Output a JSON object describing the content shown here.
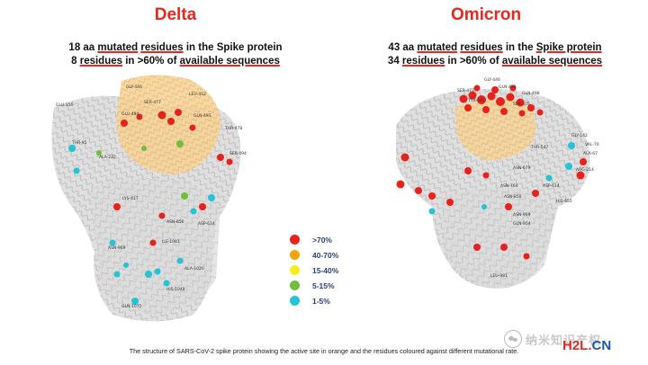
{
  "delta": {
    "title": "Delta",
    "subtitle_line1": [
      "18 aa ",
      "mutated",
      " ",
      "residues",
      " in the Spike protein"
    ],
    "subtitle_line2": [
      "8 ",
      "residues",
      " in >60% of ",
      "available sequences"
    ],
    "residue_labels": [
      "GLU-156",
      "LEU-452",
      "THR-478",
      "SER-477",
      "GLN-493",
      "GLY-446",
      "GLU-484",
      "SER-494",
      "THR-95",
      "ALA-222",
      "LYS-417",
      "ASP-614",
      "ASN-856",
      "ASN-969",
      "ILE-1081",
      "ALA-1020",
      "HIS-1048",
      "GLN-1071"
    ]
  },
  "omicron": {
    "title": "Omicron",
    "subtitle_line1": [
      "43 aa ",
      "mutated",
      " ",
      "residues",
      " in the ",
      "Spike protein"
    ],
    "subtitle_line2": [
      "34 ",
      "residues",
      " in >60% of ",
      "available sequences"
    ],
    "residue_labels": [
      "GLY-446",
      "GLN-493",
      "GLN-498",
      "SER-477",
      "SER-375",
      "TYR-505",
      "THR-547",
      "ASN-679",
      "ASP-614",
      "HIS-655",
      "ARG-214",
      "VAL-70",
      "ALA-67",
      "GLY-142",
      "ASN-764",
      "ASN-856",
      "GLN-954",
      "ASN-969",
      "LEU-981"
    ]
  },
  "legend": {
    "items": [
      {
        "label": ">70%",
        "color": "#e8221a"
      },
      {
        "label": "40-70%",
        "color": "#f2a60c"
      },
      {
        "label": "15-40%",
        "color": "#f7ec1c"
      },
      {
        "label": "5-15%",
        "color": "#6fbf3b"
      },
      {
        "label": "1-5%",
        "color": "#22c4d6"
      }
    ]
  },
  "caption": "The structure of SARS-CoV-2 spike protein showing the active site in orange and the residues coloured against different mutational rate.",
  "watermark": {
    "text": "纳米知识产权",
    "logo_main": "H2L",
    "logo_dot": ".",
    "logo_suffix": "CN"
  }
}
